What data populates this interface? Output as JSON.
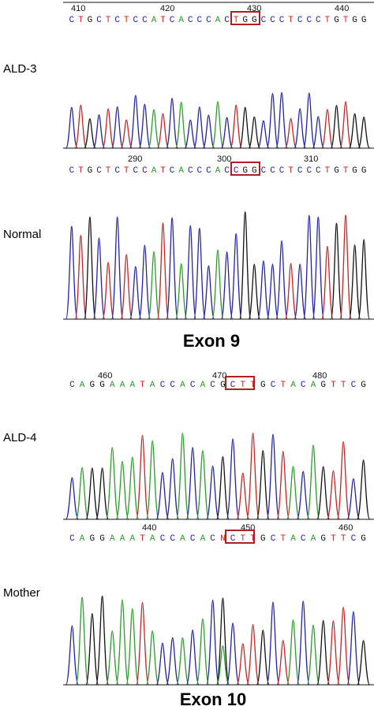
{
  "colors": {
    "A": "#2a9d2a",
    "C": "#2222aa",
    "G": "#111111",
    "T": "#cc2222",
    "N": "#cc2222",
    "box": "#b02020"
  },
  "exon9": {
    "title": "Exon 9",
    "ald3": {
      "label": "ALD-3",
      "sequence": "CTGCTCTCCATCACCCACTGGCCCTCCCTGTGG",
      "ruler": [
        "410",
        "420",
        "430",
        "440"
      ],
      "boxed_codon": "TGG"
    },
    "normal": {
      "label": "Normal",
      "sequence": "CTGCTCTCCATCACCCACCGGCCCTCCCTGTGG",
      "ruler": [
        "290",
        "300",
        "310"
      ],
      "boxed_codon": "CGG"
    }
  },
  "exon10": {
    "title": "Exon 10",
    "ald4": {
      "label": "ALD-4",
      "sequence": "CAGGAAATACCACACGCTTGCTACAGTTCG",
      "ruler": [
        "460",
        "470",
        "480"
      ],
      "boxed_codon": "GCT"
    },
    "mother": {
      "label": "Mother",
      "sequence": "CAGGAAATACCACACNCTTGCTACAGTTCG",
      "ruler": [
        "440",
        "450",
        "460"
      ],
      "boxed_codon": "NCT"
    }
  }
}
